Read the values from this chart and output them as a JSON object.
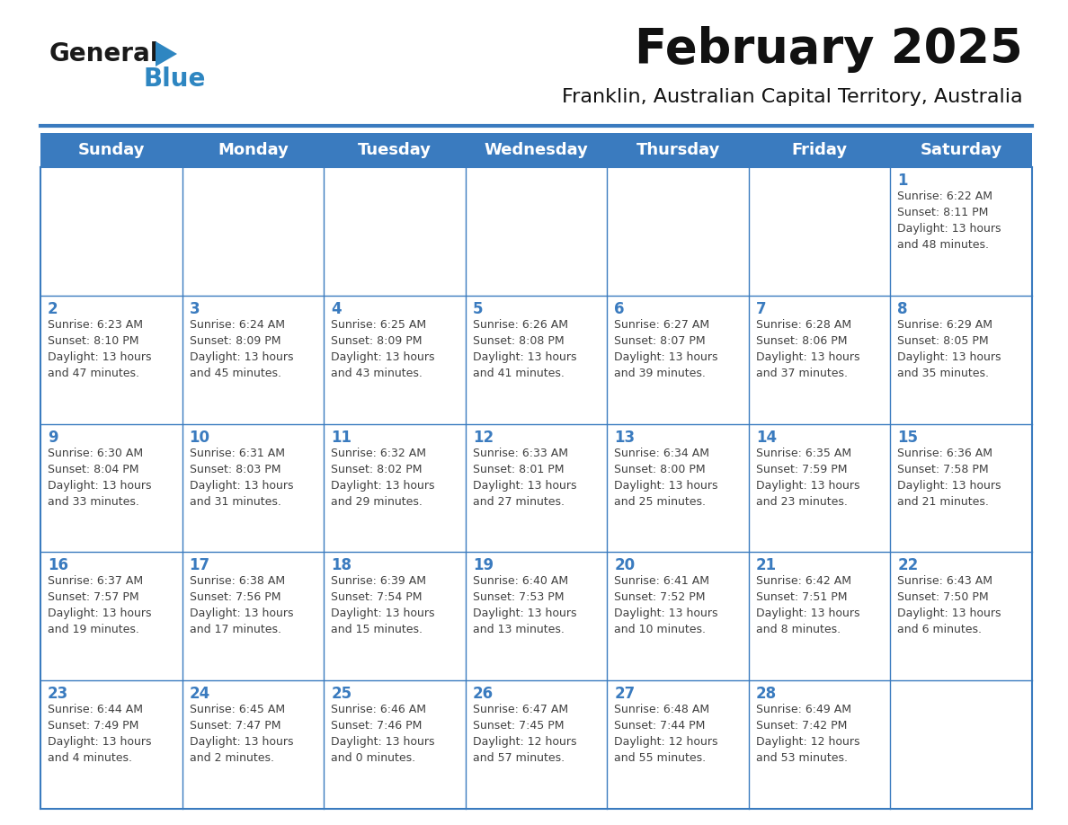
{
  "title": "February 2025",
  "subtitle": "Franklin, Australian Capital Territory, Australia",
  "days_of_week": [
    "Sunday",
    "Monday",
    "Tuesday",
    "Wednesday",
    "Thursday",
    "Friday",
    "Saturday"
  ],
  "header_bg": "#3a7bbf",
  "header_text": "#ffffff",
  "cell_bg": "#ffffff",
  "border_color": "#3a7bbf",
  "day_num_color": "#3a7bbf",
  "text_color": "#404040",
  "logo_general_color": "#1a1a1a",
  "logo_blue_color": "#2e86c1",
  "background_color": "#ffffff",
  "title_fontsize": 38,
  "subtitle_fontsize": 16,
  "header_fontsize": 13,
  "day_num_fontsize": 12,
  "info_fontsize": 9,
  "calendar_data": [
    [
      {
        "day": "",
        "info": ""
      },
      {
        "day": "",
        "info": ""
      },
      {
        "day": "",
        "info": ""
      },
      {
        "day": "",
        "info": ""
      },
      {
        "day": "",
        "info": ""
      },
      {
        "day": "",
        "info": ""
      },
      {
        "day": "1",
        "info": "Sunrise: 6:22 AM\nSunset: 8:11 PM\nDaylight: 13 hours\nand 48 minutes."
      }
    ],
    [
      {
        "day": "2",
        "info": "Sunrise: 6:23 AM\nSunset: 8:10 PM\nDaylight: 13 hours\nand 47 minutes."
      },
      {
        "day": "3",
        "info": "Sunrise: 6:24 AM\nSunset: 8:09 PM\nDaylight: 13 hours\nand 45 minutes."
      },
      {
        "day": "4",
        "info": "Sunrise: 6:25 AM\nSunset: 8:09 PM\nDaylight: 13 hours\nand 43 minutes."
      },
      {
        "day": "5",
        "info": "Sunrise: 6:26 AM\nSunset: 8:08 PM\nDaylight: 13 hours\nand 41 minutes."
      },
      {
        "day": "6",
        "info": "Sunrise: 6:27 AM\nSunset: 8:07 PM\nDaylight: 13 hours\nand 39 minutes."
      },
      {
        "day": "7",
        "info": "Sunrise: 6:28 AM\nSunset: 8:06 PM\nDaylight: 13 hours\nand 37 minutes."
      },
      {
        "day": "8",
        "info": "Sunrise: 6:29 AM\nSunset: 8:05 PM\nDaylight: 13 hours\nand 35 minutes."
      }
    ],
    [
      {
        "day": "9",
        "info": "Sunrise: 6:30 AM\nSunset: 8:04 PM\nDaylight: 13 hours\nand 33 minutes."
      },
      {
        "day": "10",
        "info": "Sunrise: 6:31 AM\nSunset: 8:03 PM\nDaylight: 13 hours\nand 31 minutes."
      },
      {
        "day": "11",
        "info": "Sunrise: 6:32 AM\nSunset: 8:02 PM\nDaylight: 13 hours\nand 29 minutes."
      },
      {
        "day": "12",
        "info": "Sunrise: 6:33 AM\nSunset: 8:01 PM\nDaylight: 13 hours\nand 27 minutes."
      },
      {
        "day": "13",
        "info": "Sunrise: 6:34 AM\nSunset: 8:00 PM\nDaylight: 13 hours\nand 25 minutes."
      },
      {
        "day": "14",
        "info": "Sunrise: 6:35 AM\nSunset: 7:59 PM\nDaylight: 13 hours\nand 23 minutes."
      },
      {
        "day": "15",
        "info": "Sunrise: 6:36 AM\nSunset: 7:58 PM\nDaylight: 13 hours\nand 21 minutes."
      }
    ],
    [
      {
        "day": "16",
        "info": "Sunrise: 6:37 AM\nSunset: 7:57 PM\nDaylight: 13 hours\nand 19 minutes."
      },
      {
        "day": "17",
        "info": "Sunrise: 6:38 AM\nSunset: 7:56 PM\nDaylight: 13 hours\nand 17 minutes."
      },
      {
        "day": "18",
        "info": "Sunrise: 6:39 AM\nSunset: 7:54 PM\nDaylight: 13 hours\nand 15 minutes."
      },
      {
        "day": "19",
        "info": "Sunrise: 6:40 AM\nSunset: 7:53 PM\nDaylight: 13 hours\nand 13 minutes."
      },
      {
        "day": "20",
        "info": "Sunrise: 6:41 AM\nSunset: 7:52 PM\nDaylight: 13 hours\nand 10 minutes."
      },
      {
        "day": "21",
        "info": "Sunrise: 6:42 AM\nSunset: 7:51 PM\nDaylight: 13 hours\nand 8 minutes."
      },
      {
        "day": "22",
        "info": "Sunrise: 6:43 AM\nSunset: 7:50 PM\nDaylight: 13 hours\nand 6 minutes."
      }
    ],
    [
      {
        "day": "23",
        "info": "Sunrise: 6:44 AM\nSunset: 7:49 PM\nDaylight: 13 hours\nand 4 minutes."
      },
      {
        "day": "24",
        "info": "Sunrise: 6:45 AM\nSunset: 7:47 PM\nDaylight: 13 hours\nand 2 minutes."
      },
      {
        "day": "25",
        "info": "Sunrise: 6:46 AM\nSunset: 7:46 PM\nDaylight: 13 hours\nand 0 minutes."
      },
      {
        "day": "26",
        "info": "Sunrise: 6:47 AM\nSunset: 7:45 PM\nDaylight: 12 hours\nand 57 minutes."
      },
      {
        "day": "27",
        "info": "Sunrise: 6:48 AM\nSunset: 7:44 PM\nDaylight: 12 hours\nand 55 minutes."
      },
      {
        "day": "28",
        "info": "Sunrise: 6:49 AM\nSunset: 7:42 PM\nDaylight: 12 hours\nand 53 minutes."
      },
      {
        "day": "",
        "info": ""
      }
    ]
  ]
}
